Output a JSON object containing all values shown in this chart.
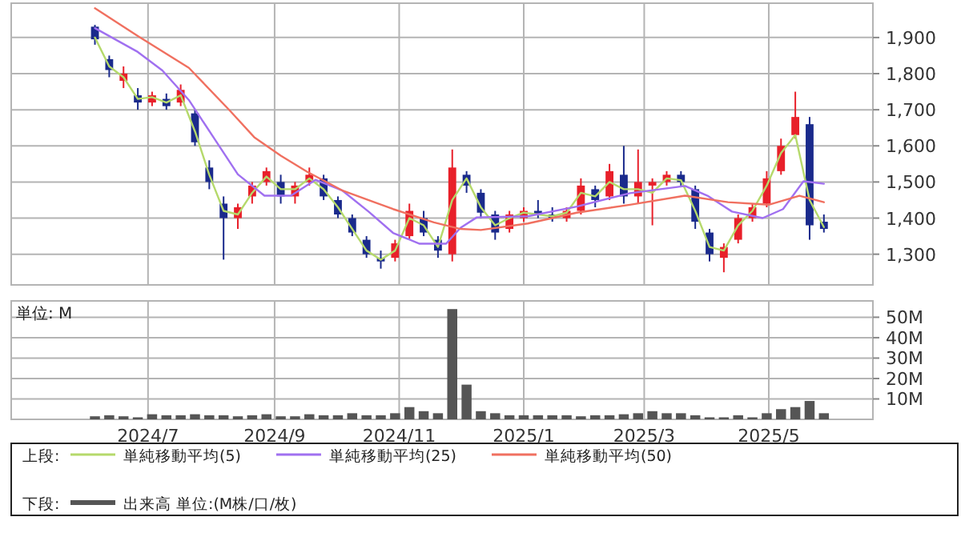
{
  "chart_data": [
    {
      "type": "candlestick",
      "legend_title": "上段:",
      "legend": "bottom",
      "grid": true,
      "tick_labels": "y",
      "xlim": [
        "2024-04-25",
        "2025-06-21"
      ],
      "xticks": [
        {
          "value": "2024-07-01",
          "label": null
        },
        {
          "value": "2024-09-01",
          "label": null
        },
        {
          "value": "2024-11-01",
          "label": null
        },
        {
          "value": "2025-01-01",
          "label": null
        },
        {
          "value": "2025-03-01",
          "label": null
        },
        {
          "value": "2025-05-01",
          "label": null
        }
      ],
      "ylim": [
        1215,
        1995
      ],
      "yticks": [
        {
          "value": 1300,
          "label": "1,300"
        },
        {
          "value": 1400,
          "label": "1,400"
        },
        {
          "value": 1500,
          "label": "1,500"
        },
        {
          "value": 1600,
          "label": "1,600"
        },
        {
          "value": 1700,
          "label": "1,700"
        },
        {
          "value": 1800,
          "label": "1,800"
        },
        {
          "value": 1900,
          "label": "1,900"
        }
      ],
      "x": [
        "2024-06-05",
        "2024-06-12",
        "2024-06-19",
        "2024-06-26",
        "2024-07-03",
        "2024-07-10",
        "2024-07-17",
        "2024-07-24",
        "2024-07-31",
        "2024-08-07",
        "2024-08-14",
        "2024-08-21",
        "2024-08-28",
        "2024-09-04",
        "2024-09-11",
        "2024-09-18",
        "2024-09-25",
        "2024-10-02",
        "2024-10-09",
        "2024-10-16",
        "2024-10-23",
        "2024-10-30",
        "2024-11-06",
        "2024-11-13",
        "2024-11-20",
        "2024-11-27",
        "2024-12-04",
        "2024-12-11",
        "2024-12-18",
        "2024-12-25",
        "2025-01-01",
        "2025-01-08",
        "2025-01-15",
        "2025-01-22",
        "2025-01-29",
        "2025-02-05",
        "2025-02-12",
        "2025-02-19",
        "2025-02-26",
        "2025-03-05",
        "2025-03-12",
        "2025-03-19",
        "2025-03-26",
        "2025-04-02",
        "2025-04-09",
        "2025-04-16",
        "2025-04-23",
        "2025-04-30",
        "2025-05-07",
        "2025-05-14",
        "2025-05-21",
        "2025-05-28"
      ],
      "ohlc": [
        [
          1930,
          1935,
          1880,
          1895
        ],
        [
          1840,
          1850,
          1790,
          1810
        ],
        [
          1780,
          1820,
          1760,
          1800
        ],
        [
          1740,
          1760,
          1700,
          1720
        ],
        [
          1720,
          1750,
          1710,
          1740
        ],
        [
          1730,
          1745,
          1700,
          1710
        ],
        [
          1720,
          1770,
          1710,
          1755
        ],
        [
          1690,
          1700,
          1600,
          1610
        ],
        [
          1540,
          1560,
          1480,
          1500
        ],
        [
          1440,
          1460,
          1285,
          1400
        ],
        [
          1400,
          1440,
          1370,
          1430
        ],
        [
          1460,
          1500,
          1440,
          1490
        ],
        [
          1500,
          1540,
          1490,
          1530
        ],
        [
          1500,
          1520,
          1440,
          1460
        ],
        [
          1460,
          1500,
          1440,
          1490
        ],
        [
          1500,
          1540,
          1490,
          1520
        ],
        [
          1510,
          1520,
          1450,
          1460
        ],
        [
          1450,
          1460,
          1400,
          1410
        ],
        [
          1400,
          1410,
          1350,
          1360
        ],
        [
          1340,
          1350,
          1290,
          1300
        ],
        [
          1290,
          1310,
          1260,
          1280
        ],
        [
          1290,
          1340,
          1280,
          1330
        ],
        [
          1350,
          1440,
          1340,
          1420
        ],
        [
          1400,
          1420,
          1350,
          1360
        ],
        [
          1340,
          1350,
          1290,
          1310
        ],
        [
          1300,
          1590,
          1280,
          1540
        ],
        [
          1520,
          1530,
          1470,
          1490
        ],
        [
          1470,
          1480,
          1400,
          1415
        ],
        [
          1410,
          1420,
          1340,
          1360
        ],
        [
          1370,
          1420,
          1360,
          1410
        ],
        [
          1400,
          1430,
          1390,
          1420
        ],
        [
          1420,
          1450,
          1400,
          1410
        ],
        [
          1410,
          1430,
          1390,
          1400
        ],
        [
          1400,
          1430,
          1390,
          1420
        ],
        [
          1420,
          1510,
          1410,
          1490
        ],
        [
          1480,
          1490,
          1430,
          1450
        ],
        [
          1460,
          1550,
          1450,
          1530
        ],
        [
          1520,
          1600,
          1440,
          1460
        ],
        [
          1460,
          1590,
          1440,
          1500
        ],
        [
          1490,
          1510,
          1380,
          1500
        ],
        [
          1500,
          1530,
          1490,
          1520
        ],
        [
          1520,
          1530,
          1490,
          1500
        ],
        [
          1480,
          1490,
          1370,
          1390
        ],
        [
          1360,
          1370,
          1280,
          1300
        ],
        [
          1290,
          1330,
          1250,
          1320
        ],
        [
          1340,
          1410,
          1330,
          1400
        ],
        [
          1400,
          1440,
          1390,
          1430
        ],
        [
          1440,
          1530,
          1430,
          1510
        ],
        [
          1530,
          1620,
          1520,
          1600
        ],
        [
          1630,
          1750,
          1620,
          1680
        ],
        [
          1660,
          1680,
          1340,
          1380
        ],
        [
          1390,
          1410,
          1360,
          1370
        ]
      ],
      "colors": [
        "#1a2a8c",
        "#1a2a8c",
        "#e8202a",
        "#1a2a8c",
        "#e8202a",
        "#1a2a8c",
        "#e8202a",
        "#1a2a8c",
        "#1a2a8c",
        "#1a2a8c",
        "#e8202a",
        "#e8202a",
        "#e8202a",
        "#1a2a8c",
        "#e8202a",
        "#e8202a",
        "#1a2a8c",
        "#1a2a8c",
        "#1a2a8c",
        "#1a2a8c",
        "#1a2a8c",
        "#e8202a",
        "#e8202a",
        "#1a2a8c",
        "#1a2a8c",
        "#e8202a",
        "#1a2a8c",
        "#1a2a8c",
        "#1a2a8c",
        "#e8202a",
        "#e8202a",
        "#1a2a8c",
        "#1a2a8c",
        "#e8202a",
        "#e8202a",
        "#1a2a8c",
        "#e8202a",
        "#1a2a8c",
        "#e8202a",
        "#e8202a",
        "#e8202a",
        "#1a2a8c",
        "#1a2a8c",
        "#1a2a8c",
        "#e8202a",
        "#e8202a",
        "#e8202a",
        "#e8202a",
        "#e8202a",
        "#e8202a",
        "#1a2a8c",
        "#1a2a8c"
      ],
      "series": [
        {
          "type": "line",
          "name": "単純移動平均(5)",
          "color": "#b5d96b",
          "x": [
            "2024-06-05",
            "2024-06-12",
            "2024-06-19",
            "2024-06-26",
            "2024-07-03",
            "2024-07-10",
            "2024-07-17",
            "2024-07-24",
            "2024-07-31",
            "2024-08-07",
            "2024-08-14",
            "2024-08-21",
            "2024-08-28",
            "2024-09-04",
            "2024-09-11",
            "2024-09-18",
            "2024-09-25",
            "2024-10-02",
            "2024-10-09",
            "2024-10-16",
            "2024-10-23",
            "2024-10-30",
            "2024-11-06",
            "2024-11-13",
            "2024-11-20",
            "2024-11-27",
            "2024-12-04",
            "2024-12-11",
            "2024-12-18",
            "2024-12-25",
            "2025-01-01",
            "2025-01-08",
            "2025-01-15",
            "2025-01-22",
            "2025-01-29",
            "2025-02-05",
            "2025-02-12",
            "2025-02-19",
            "2025-02-26",
            "2025-03-05",
            "2025-03-12",
            "2025-03-19",
            "2025-03-26",
            "2025-04-02",
            "2025-04-09",
            "2025-04-16",
            "2025-04-23",
            "2025-04-30",
            "2025-05-07",
            "2025-05-14",
            "2025-05-21",
            "2025-05-28"
          ],
          "values": [
            1900,
            1820,
            1790,
            1730,
            1735,
            1720,
            1740,
            1640,
            1520,
            1420,
            1410,
            1470,
            1515,
            1480,
            1480,
            1510,
            1480,
            1430,
            1370,
            1310,
            1285,
            1310,
            1400,
            1380,
            1320,
            1450,
            1510,
            1430,
            1380,
            1400,
            1415,
            1410,
            1405,
            1415,
            1470,
            1460,
            1500,
            1480,
            1480,
            1470,
            1510,
            1505,
            1420,
            1320,
            1310,
            1380,
            1420,
            1490,
            1580,
            1630,
            1450,
            1375
          ]
        },
        {
          "type": "line",
          "name": "単純移動平均(25)",
          "color": "#a070f0",
          "x": [
            "2024-06-05",
            "2024-06-26",
            "2024-07-08",
            "2024-07-21",
            "2024-08-02",
            "2024-08-14",
            "2024-08-27",
            "2024-09-09",
            "2024-09-21",
            "2024-10-04",
            "2024-10-17",
            "2024-10-29",
            "2024-11-11",
            "2024-11-24",
            "2024-12-01",
            "2024-12-09",
            "2025-01-03",
            "2025-01-27",
            "2025-02-22",
            "2025-03-21",
            "2025-04-01",
            "2025-04-13",
            "2025-04-28",
            "2025-05-08",
            "2025-05-18",
            "2025-05-28"
          ],
          "values": [
            1926,
            1860,
            1809,
            1727,
            1624,
            1521,
            1462,
            1462,
            1506,
            1477,
            1418,
            1359,
            1329,
            1329,
            1373,
            1402,
            1405,
            1432,
            1469,
            1489,
            1462,
            1418,
            1400,
            1425,
            1502,
            1495
          ]
        },
        {
          "type": "line",
          "name": "単純移動平均(50)",
          "color": "#f07060",
          "x": [
            "2024-06-05",
            "2024-06-26",
            "2024-07-21",
            "2024-08-10",
            "2024-08-22",
            "2024-09-04",
            "2024-09-17",
            "2024-10-04",
            "2024-10-29",
            "2024-11-18",
            "2024-12-01",
            "2024-12-11",
            "2025-01-03",
            "2025-01-27",
            "2025-02-22",
            "2025-03-21",
            "2025-04-11",
            "2025-05-01",
            "2025-05-16",
            "2025-05-28"
          ],
          "values": [
            1981,
            1904,
            1816,
            1698,
            1624,
            1573,
            1528,
            1477,
            1425,
            1388,
            1370,
            1367,
            1385,
            1415,
            1437,
            1462,
            1444,
            1437,
            1462,
            1444
          ]
        }
      ]
    },
    {
      "type": "bar",
      "legend_title": "下段:",
      "legend": "bottom",
      "grid": true,
      "annotations": [
        "単位: M"
      ],
      "xlim": [
        "2024-04-25",
        "2025-06-21"
      ],
      "xticks": [
        {
          "value": "2024-07-01",
          "label": "2024/7"
        },
        {
          "value": "2024-09-01",
          "label": "2024/9"
        },
        {
          "value": "2024-11-01",
          "label": "2024/11"
        },
        {
          "value": "2025-01-01",
          "label": "2025/1"
        },
        {
          "value": "2025-03-01",
          "label": "2025/3"
        },
        {
          "value": "2025-05-01",
          "label": "2025/5"
        }
      ],
      "ylim": [
        0,
        58
      ],
      "yticks": [
        {
          "value": 10,
          "label": "10M"
        },
        {
          "value": 20,
          "label": "20M"
        },
        {
          "value": 30,
          "label": "30M"
        },
        {
          "value": 40,
          "label": "40M"
        },
        {
          "value": 50,
          "label": "50M"
        }
      ],
      "x": [
        "2024-06-05",
        "2024-06-12",
        "2024-06-19",
        "2024-06-26",
        "2024-07-03",
        "2024-07-10",
        "2024-07-17",
        "2024-07-24",
        "2024-07-31",
        "2024-08-07",
        "2024-08-14",
        "2024-08-21",
        "2024-08-28",
        "2024-09-04",
        "2024-09-11",
        "2024-09-18",
        "2024-09-25",
        "2024-10-02",
        "2024-10-09",
        "2024-10-16",
        "2024-10-23",
        "2024-10-30",
        "2024-11-06",
        "2024-11-13",
        "2024-11-20",
        "2024-11-27",
        "2024-12-04",
        "2024-12-11",
        "2024-12-18",
        "2024-12-25",
        "2025-01-01",
        "2025-01-08",
        "2025-01-15",
        "2025-01-22",
        "2025-01-29",
        "2025-02-05",
        "2025-02-12",
        "2025-02-19",
        "2025-02-26",
        "2025-03-05",
        "2025-03-12",
        "2025-03-19",
        "2025-03-26",
        "2025-04-02",
        "2025-04-09",
        "2025-04-16",
        "2025-04-23",
        "2025-04-30",
        "2025-05-07",
        "2025-05-14",
        "2025-05-21",
        "2025-05-28"
      ],
      "series": [
        {
          "name": "出来高 単位:(M株/口/枚)",
          "color": "#555555",
          "values": [
            1.5,
            2,
            1.5,
            1,
            2.5,
            2,
            2,
            2.5,
            2,
            2,
            1.5,
            2,
            2.5,
            1.5,
            1.5,
            2.5,
            2,
            2,
            3,
            2,
            2,
            3,
            6,
            4,
            3,
            54,
            17,
            4,
            3,
            2,
            2,
            2,
            2,
            2,
            1.5,
            2,
            2,
            2.5,
            3,
            4,
            3,
            3,
            2,
            1,
            1,
            2,
            1,
            3,
            5,
            6,
            9,
            3
          ]
        }
      ]
    }
  ]
}
